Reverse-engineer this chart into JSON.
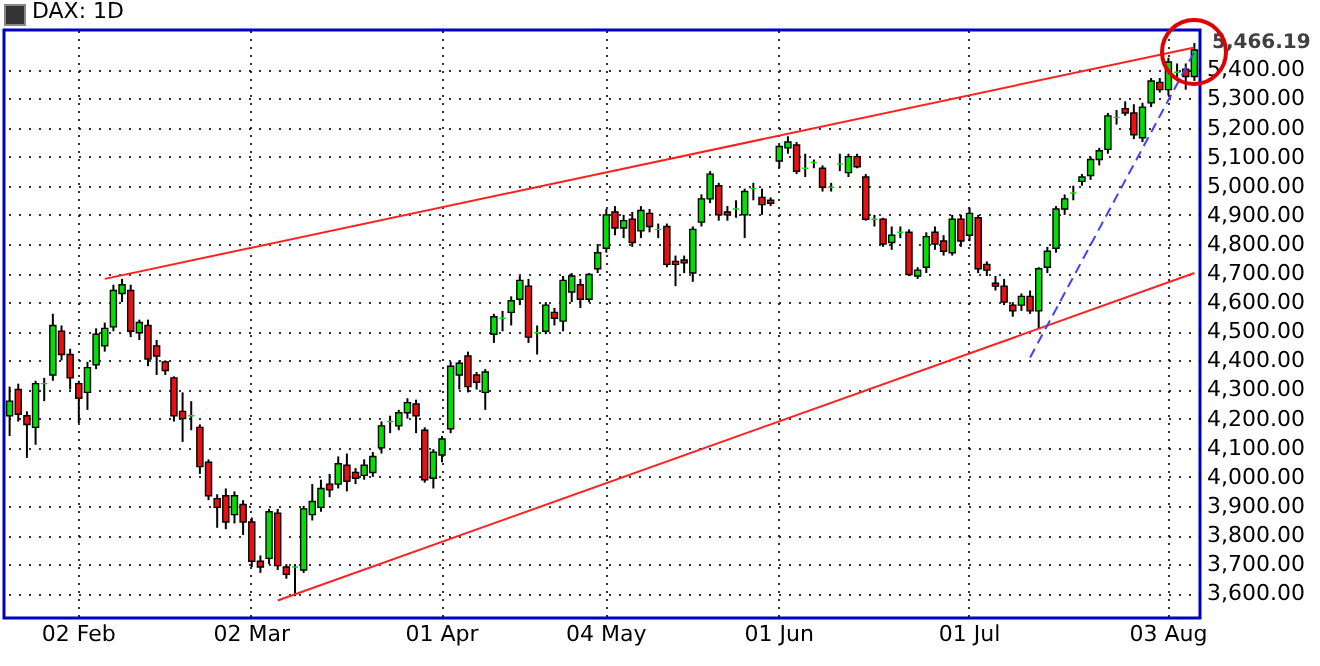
{
  "chart_data": {
    "type": "candlestick",
    "title": "DAX: 1D",
    "categories": [
      null,
      null,
      null,
      null,
      null,
      null,
      null,
      null,
      "02 Feb",
      null,
      null,
      null,
      null,
      null,
      null,
      null,
      null,
      null,
      null,
      null,
      null,
      null,
      null,
      null,
      null,
      null,
      null,
      null,
      "02 Mar",
      null,
      null,
      null,
      null,
      null,
      null,
      null,
      null,
      null,
      null,
      null,
      null,
      null,
      null,
      null,
      null,
      null,
      null,
      null,
      null,
      null,
      "01 Apr",
      null,
      null,
      null,
      null,
      null,
      null,
      null,
      null,
      null,
      null,
      null,
      null,
      null,
      null,
      null,
      null,
      null,
      null,
      "04 May",
      null,
      null,
      null,
      null,
      null,
      null,
      null,
      null,
      null,
      null,
      null,
      null,
      null,
      null,
      null,
      null,
      null,
      null,
      null,
      "01 Jun",
      null,
      null,
      null,
      null,
      null,
      null,
      null,
      null,
      null,
      null,
      null,
      null,
      null,
      null,
      null,
      null,
      null,
      null,
      null,
      null,
      null,
      "01 Jul",
      null,
      null,
      null,
      null,
      null,
      null,
      null,
      null,
      null,
      null,
      null,
      null,
      null,
      null,
      null,
      null,
      null,
      null,
      null,
      null,
      null,
      null,
      "03 Aug",
      null,
      null,
      null
    ],
    "ohlc": [
      [
        4210,
        4310,
        4140,
        4260
      ],
      [
        4300,
        4320,
        4190,
        4215
      ],
      [
        4210,
        4225,
        4065,
        4180
      ],
      [
        4170,
        4330,
        4110,
        4320
      ],
      [
        4320,
        4340,
        4260,
        4320
      ],
      [
        4350,
        4560,
        4330,
        4520
      ],
      [
        4500,
        4520,
        4400,
        4420
      ],
      [
        4420,
        4440,
        4300,
        4340
      ],
      [
        4320,
        4330,
        4185,
        4270
      ],
      [
        4290,
        4395,
        4230,
        4375
      ],
      [
        4385,
        4510,
        4370,
        4490
      ],
      [
        4450,
        4530,
        4430,
        4510
      ],
      [
        4515,
        4660,
        4500,
        4640
      ],
      [
        4630,
        4680,
        4600,
        4660
      ],
      [
        4640,
        4660,
        4480,
        4500
      ],
      [
        4495,
        4540,
        4470,
        4530
      ],
      [
        4520,
        4540,
        4380,
        4405
      ],
      [
        4450,
        4470,
        4350,
        4415
      ],
      [
        4395,
        4400,
        4350,
        4365
      ],
      [
        4340,
        4345,
        4190,
        4210
      ],
      [
        4225,
        4290,
        4120,
        4200
      ],
      [
        4210,
        4260,
        4160,
        4210
      ],
      [
        4170,
        4180,
        4010,
        4035
      ],
      [
        4050,
        4060,
        3920,
        3935
      ],
      [
        3925,
        3940,
        3825,
        3895
      ],
      [
        3935,
        3960,
        3820,
        3845
      ],
      [
        3870,
        3950,
        3840,
        3935
      ],
      [
        3905,
        3920,
        3800,
        3845
      ],
      [
        3845,
        3860,
        3690,
        3710
      ],
      [
        3710,
        3730,
        3670,
        3690
      ],
      [
        3720,
        3890,
        3700,
        3880
      ],
      [
        3875,
        3890,
        3680,
        3695
      ],
      [
        3690,
        3700,
        3650,
        3665
      ],
      [
        3690,
        3700,
        3590,
        3690
      ],
      [
        3680,
        3900,
        3670,
        3890
      ],
      [
        3870,
        3975,
        3850,
        3915
      ],
      [
        3895,
        3990,
        3880,
        3960
      ],
      [
        3975,
        4010,
        3930,
        3955
      ],
      [
        3975,
        4070,
        3960,
        4045
      ],
      [
        4040,
        4080,
        3950,
        3985
      ],
      [
        4015,
        4030,
        3975,
        3995
      ],
      [
        4005,
        4060,
        3990,
        4040
      ],
      [
        4015,
        4085,
        4000,
        4070
      ],
      [
        4100,
        4190,
        4080,
        4175
      ],
      [
        4190,
        4210,
        4150,
        4190
      ],
      [
        4175,
        4230,
        4160,
        4220
      ],
      [
        4220,
        4270,
        4200,
        4255
      ],
      [
        4250,
        4265,
        4150,
        4210
      ],
      [
        4160,
        4170,
        3980,
        3990
      ],
      [
        3995,
        4095,
        3960,
        4085
      ],
      [
        4075,
        4140,
        4050,
        4130
      ],
      [
        4165,
        4395,
        4150,
        4380
      ],
      [
        4350,
        4400,
        4300,
        4390
      ],
      [
        4415,
        4430,
        4290,
        4310
      ],
      [
        4350,
        4360,
        4300,
        4325
      ],
      [
        4290,
        4370,
        4230,
        4360
      ],
      [
        4490,
        4560,
        4460,
        4550
      ],
      [
        4545,
        4570,
        4500,
        4545
      ],
      [
        4565,
        4620,
        4520,
        4605
      ],
      [
        4610,
        4690,
        4590,
        4675
      ],
      [
        4655,
        4680,
        4460,
        4480
      ],
      [
        4495,
        4520,
        4420,
        4495
      ],
      [
        4500,
        4600,
        4490,
        4590
      ],
      [
        4565,
        4580,
        4520,
        4545
      ],
      [
        4535,
        4690,
        4500,
        4675
      ],
      [
        4635,
        4700,
        4600,
        4690
      ],
      [
        4660,
        4680,
        4580,
        4610
      ],
      [
        4610,
        4700,
        4600,
        4695
      ],
      [
        4715,
        4800,
        4700,
        4770
      ],
      [
        4785,
        4920,
        4770,
        4900
      ],
      [
        4910,
        4930,
        4830,
        4855
      ],
      [
        4855,
        4900,
        4820,
        4880
      ],
      [
        4885,
        4910,
        4790,
        4805
      ],
      [
        4845,
        4930,
        4820,
        4915
      ],
      [
        4905,
        4920,
        4840,
        4860
      ],
      [
        4850,
        4870,
        4820,
        4850
      ],
      [
        4860,
        4870,
        4720,
        4730
      ],
      [
        4740,
        4760,
        4655,
        4730
      ],
      [
        4745,
        4760,
        4700,
        4735
      ],
      [
        4700,
        4860,
        4670,
        4850
      ],
      [
        4875,
        4970,
        4860,
        4955
      ],
      [
        4955,
        5050,
        4940,
        5040
      ],
      [
        5000,
        5010,
        4880,
        4900
      ],
      [
        4910,
        4930,
        4880,
        4900
      ],
      [
        4920,
        4950,
        4890,
        4920
      ],
      [
        4900,
        4990,
        4820,
        4980
      ],
      [
        4990,
        5010,
        4950,
        4990
      ],
      [
        4960,
        4990,
        4900,
        4935
      ],
      [
        4950,
        4960,
        4930,
        4940
      ],
      [
        5085,
        5140,
        5060,
        5135
      ],
      [
        5130,
        5170,
        5110,
        5150
      ],
      [
        5140,
        5150,
        5040,
        5050
      ],
      [
        5060,
        5110,
        5030,
        5060
      ],
      [
        5080,
        5090,
        5060,
        5080
      ],
      [
        5060,
        5070,
        4980,
        4995
      ],
      [
        4995,
        5010,
        4980,
        4995
      ],
      [
        5075,
        5110,
        5050,
        5075
      ],
      [
        5045,
        5110,
        5030,
        5100
      ],
      [
        5100,
        5110,
        5060,
        5065
      ],
      [
        5030,
        5040,
        4880,
        4885
      ],
      [
        4885,
        4900,
        4860,
        4885
      ],
      [
        4885,
        4890,
        4790,
        4800
      ],
      [
        4805,
        4860,
        4780,
        4830
      ],
      [
        4840,
        4860,
        4820,
        4840
      ],
      [
        4840,
        4850,
        4690,
        4695
      ],
      [
        4690,
        4720,
        4680,
        4710
      ],
      [
        4720,
        4840,
        4700,
        4825
      ],
      [
        4840,
        4860,
        4780,
        4800
      ],
      [
        4810,
        4830,
        4760,
        4775
      ],
      [
        4770,
        4900,
        4760,
        4885
      ],
      [
        4885,
        4900,
        4790,
        4810
      ],
      [
        4830,
        4925,
        4810,
        4905
      ],
      [
        4890,
        4900,
        4700,
        4715
      ],
      [
        4730,
        4740,
        4690,
        4710
      ],
      [
        4665,
        4690,
        4640,
        4655
      ],
      [
        4655,
        4680,
        4590,
        4600
      ],
      [
        4590,
        4600,
        4550,
        4570
      ],
      [
        4590,
        4630,
        4570,
        4620
      ],
      [
        4620,
        4640,
        4560,
        4570
      ],
      [
        4570,
        4720,
        4510,
        4715
      ],
      [
        4720,
        4790,
        4700,
        4775
      ],
      [
        4785,
        4930,
        4770,
        4920
      ],
      [
        4920,
        4970,
        4900,
        4955
      ],
      [
        4975,
        5000,
        4950,
        4975
      ],
      [
        5015,
        5040,
        5000,
        5030
      ],
      [
        5035,
        5100,
        5020,
        5090
      ],
      [
        5090,
        5130,
        5070,
        5120
      ],
      [
        5125,
        5250,
        5110,
        5240
      ],
      [
        5235,
        5260,
        5210,
        5235
      ],
      [
        5265,
        5290,
        5240,
        5250
      ],
      [
        5250,
        5280,
        5160,
        5175
      ],
      [
        5165,
        5285,
        5150,
        5270
      ],
      [
        5285,
        5370,
        5270,
        5360
      ],
      [
        5355,
        5370,
        5320,
        5330
      ],
      [
        5330,
        5440,
        5310,
        5425
      ],
      [
        5390,
        5420,
        5360,
        5390
      ],
      [
        5400,
        5420,
        5330,
        5375
      ],
      [
        5375,
        5490,
        5360,
        5466.19
      ]
    ],
    "colors": [
      "#00e000",
      "#e81010",
      "#e81010",
      "#00e000",
      "#00e000",
      "#00e000",
      "#e81010",
      "#e81010",
      "#e81010",
      "#00e000",
      "#00e000",
      "#00e000",
      "#00e000",
      "#00e000",
      "#e81010",
      "#00e000",
      "#e81010",
      "#e81010",
      "#e81010",
      "#e81010",
      "#e81010",
      "#00e000",
      "#e81010",
      "#e81010",
      "#e81010",
      "#e81010",
      "#00e000",
      "#e81010",
      "#e81010",
      "#e81010",
      "#00e000",
      "#e81010",
      "#e81010",
      "#00e000",
      "#00e000",
      "#00e000",
      "#00e000",
      "#e81010",
      "#00e000",
      "#e81010",
      "#e81010",
      "#00e000",
      "#00e000",
      "#00e000",
      "#00e000",
      "#00e000",
      "#00e000",
      "#e81010",
      "#e81010",
      "#00e000",
      "#00e000",
      "#00e000",
      "#00e000",
      "#e81010",
      "#e81010",
      "#00e000",
      "#00e000",
      "#00e000",
      "#00e000",
      "#00e000",
      "#e81010",
      "#00e000",
      "#00e000",
      "#e81010",
      "#00e000",
      "#00e000",
      "#e81010",
      "#00e000",
      "#00e000",
      "#00e000",
      "#e81010",
      "#00e000",
      "#e81010",
      "#00e000",
      "#e81010",
      "#00e000",
      "#e81010",
      "#e81010",
      "#e81010",
      "#00e000",
      "#00e000",
      "#00e000",
      "#e81010",
      "#e81010",
      "#00e000",
      "#00e000",
      "#00e000",
      "#e81010",
      "#e81010",
      "#00e000",
      "#00e000",
      "#e81010",
      "#00e000",
      "#00e000",
      "#e81010",
      "#00e000",
      "#00e000",
      "#00e000",
      "#e81010",
      "#e81010",
      "#00e000",
      "#e81010",
      "#00e000",
      "#00e000",
      "#e81010",
      "#00e000",
      "#00e000",
      "#e81010",
      "#e81010",
      "#00e000",
      "#e81010",
      "#00e000",
      "#e81010",
      "#e81010",
      "#e81010",
      "#e81010",
      "#e81010",
      "#00e000",
      "#e81010",
      "#00e000",
      "#00e000",
      "#00e000",
      "#00e000",
      "#00e000",
      "#00e000",
      "#00e000",
      "#00e000",
      "#00e000",
      "#00e000",
      "#e81010",
      "#e81010",
      "#00e000",
      "#00e000",
      "#e81010",
      "#00e000",
      "#00e000",
      "#e81010",
      "#00e000"
    ],
    "series": [
      {
        "type": "line",
        "color": "#ff2020",
        "values": [
          null,
          null,
          null,
          null,
          null,
          null,
          null,
          null,
          null,
          null,
          null,
          4680,
          null,
          null,
          null,
          null,
          null,
          null,
          null,
          null,
          null,
          null,
          null,
          null,
          null,
          null,
          null,
          null,
          null,
          null,
          null,
          null,
          null,
          null,
          null,
          null,
          null,
          null,
          null,
          null,
          null,
          null,
          null,
          null,
          null,
          null,
          null,
          null,
          null,
          null,
          null,
          null,
          null,
          null,
          null,
          null,
          null,
          null,
          null,
          null,
          null,
          null,
          null,
          null,
          null,
          null,
          null,
          null,
          null,
          null,
          null,
          null,
          null,
          null,
          null,
          null,
          null,
          null,
          null,
          null,
          null,
          null,
          null,
          null,
          null,
          null,
          null,
          null,
          null,
          null,
          null,
          null,
          null,
          null,
          null,
          null,
          null,
          null,
          null,
          null,
          null,
          null,
          null,
          null,
          null,
          null,
          null,
          null,
          null,
          null,
          null,
          null,
          null,
          null,
          null,
          null,
          null,
          null,
          null,
          null,
          null,
          null,
          null,
          null,
          null,
          null,
          null,
          null,
          null,
          null,
          null,
          null,
          null,
          null,
          null,
          null,
          null,
          5475
        ]
      },
      {
        "type": "line",
        "color": "#ff2020",
        "values": [
          null,
          null,
          null,
          null,
          null,
          null,
          null,
          null,
          null,
          null,
          null,
          null,
          null,
          null,
          null,
          null,
          null,
          null,
          null,
          null,
          null,
          null,
          null,
          null,
          null,
          null,
          null,
          null,
          null,
          null,
          null,
          3575,
          null,
          null,
          null,
          null,
          null,
          null,
          null,
          null,
          null,
          null,
          null,
          null,
          null,
          null,
          null,
          null,
          null,
          null,
          null,
          null,
          null,
          null,
          null,
          null,
          null,
          null,
          null,
          null,
          null,
          null,
          null,
          null,
          null,
          null,
          null,
          null,
          null,
          null,
          null,
          null,
          null,
          null,
          null,
          null,
          null,
          null,
          null,
          null,
          null,
          null,
          null,
          null,
          null,
          null,
          null,
          null,
          null,
          null,
          null,
          null,
          null,
          null,
          null,
          null,
          null,
          null,
          null,
          null,
          null,
          null,
          null,
          null,
          null,
          null,
          null,
          null,
          null,
          null,
          null,
          null,
          null,
          null,
          null,
          null,
          null,
          null,
          null,
          null,
          null,
          null,
          null,
          null,
          null,
          null,
          null,
          null,
          null,
          null,
          null,
          null,
          null,
          null,
          null,
          null,
          null,
          4700
        ]
      },
      {
        "type": "line",
        "color": "#4040ff",
        "line_style": "dashed",
        "values": [
          null,
          null,
          null,
          null,
          null,
          null,
          null,
          null,
          null,
          null,
          null,
          null,
          null,
          null,
          null,
          null,
          null,
          null,
          null,
          null,
          null,
          null,
          null,
          null,
          null,
          null,
          null,
          null,
          null,
          null,
          null,
          null,
          null,
          null,
          null,
          null,
          null,
          null,
          null,
          null,
          null,
          null,
          null,
          null,
          null,
          null,
          null,
          null,
          null,
          null,
          null,
          null,
          null,
          null,
          null,
          null,
          null,
          null,
          null,
          null,
          null,
          null,
          null,
          null,
          null,
          null,
          null,
          null,
          null,
          null,
          null,
          null,
          null,
          null,
          null,
          null,
          null,
          null,
          null,
          null,
          null,
          null,
          null,
          null,
          null,
          null,
          null,
          null,
          null,
          null,
          null,
          null,
          null,
          null,
          null,
          null,
          null,
          null,
          null,
          null,
          null,
          null,
          null,
          null,
          null,
          null,
          null,
          null,
          null,
          null,
          null,
          null,
          null,
          null,
          null,
          null,
          null,
          null,
          4410,
          null,
          null,
          null,
          null,
          null,
          null,
          null,
          null,
          null,
          null,
          null,
          null,
          null,
          null,
          null,
          null,
          null,
          null,
          5460
        ]
      }
    ],
    "annotations": [
      "5,466.19"
    ],
    "ylim": [
      3515,
      5535
    ],
    "yticks": [
      {
        "value": 3600,
        "label": "3,600.00"
      },
      {
        "value": 3700,
        "label": "3,700.00"
      },
      {
        "value": 3800,
        "label": "3,800.00"
      },
      {
        "value": 3900,
        "label": "3,900.00"
      },
      {
        "value": 4000,
        "label": "4,000.00"
      },
      {
        "value": 4100,
        "label": "4,100.00"
      },
      {
        "value": 4200,
        "label": "4,200.00"
      },
      {
        "value": 4300,
        "label": "4,300.00"
      },
      {
        "value": 4400,
        "label": "4,400.00"
      },
      {
        "value": 4500,
        "label": "4,500.00"
      },
      {
        "value": 4600,
        "label": "4,600.00"
      },
      {
        "value": 4700,
        "label": "4,700.00"
      },
      {
        "value": 4800,
        "label": "4,800.00"
      },
      {
        "value": 4900,
        "label": "4,900.00"
      },
      {
        "value": 5000,
        "label": "5,000.00"
      },
      {
        "value": 5100,
        "label": "5,100.00"
      },
      {
        "value": 5200,
        "label": "5,200.00"
      },
      {
        "value": 5300,
        "label": "5,300.00"
      },
      {
        "value": 5400,
        "label": "5,400.00"
      }
    ],
    "grid": true
  }
}
